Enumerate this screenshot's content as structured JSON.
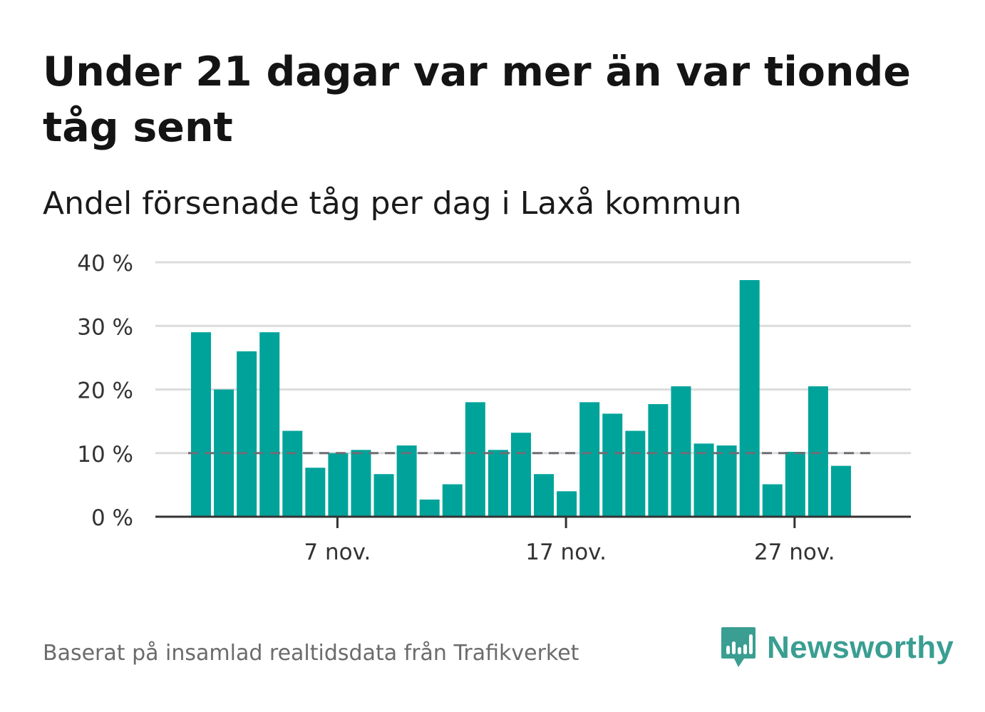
{
  "title": "Under 21 dagar var mer än var tionde tåg sent",
  "subtitle": "Andel försenade tåg per dag i Laxå kommun",
  "source": "Baserat på insamlad realtidsdata från Trafikverket",
  "brand": {
    "name": "Newsworthy",
    "icon": "newsworthy-logo-icon",
    "color": "#3a9e92"
  },
  "chart_data": {
    "type": "bar",
    "title": "Andel försenade tåg per dag i Laxå kommun",
    "xlabel": "",
    "ylabel": "",
    "ylim": [
      0,
      40
    ],
    "grid": true,
    "bar_color": "#00a39a",
    "reference_line": {
      "value": 10,
      "style": "dashed",
      "color": "#6e6e75"
    },
    "y_ticks": [
      {
        "value": 0,
        "label": "0 %"
      },
      {
        "value": 10,
        "label": "10 %"
      },
      {
        "value": 20,
        "label": "20 %"
      },
      {
        "value": 30,
        "label": "30 %"
      },
      {
        "value": 40,
        "label": "40 %"
      }
    ],
    "x_ticks": [
      {
        "day": 7,
        "label": "7 nov."
      },
      {
        "day": 17,
        "label": "17 nov."
      },
      {
        "day": 27,
        "label": "27 nov."
      }
    ],
    "categories": [
      "1 nov.",
      "2 nov.",
      "3 nov.",
      "4 nov.",
      "5 nov.",
      "6 nov.",
      "7 nov.",
      "8 nov.",
      "9 nov.",
      "10 nov.",
      "11 nov.",
      "12 nov.",
      "13 nov.",
      "14 nov.",
      "15 nov.",
      "16 nov.",
      "17 nov.",
      "18 nov.",
      "19 nov.",
      "20 nov.",
      "21 nov.",
      "22 nov.",
      "23 nov.",
      "24 nov.",
      "25 nov.",
      "26 nov.",
      "27 nov.",
      "28 nov.",
      "29 nov.",
      "30 nov."
    ],
    "days": [
      1,
      2,
      3,
      4,
      5,
      6,
      7,
      8,
      9,
      10,
      11,
      12,
      13,
      14,
      15,
      16,
      17,
      18,
      19,
      20,
      21,
      22,
      23,
      24,
      25,
      26,
      27,
      28,
      29,
      30
    ],
    "values": [
      29,
      20,
      26,
      29,
      13.5,
      7.7,
      10,
      10.5,
      6.7,
      11.2,
      2.7,
      5.1,
      18,
      10.5,
      13.2,
      6.7,
      4,
      18,
      16.2,
      13.5,
      17.7,
      20.5,
      11.5,
      11.2,
      37.2,
      5.1,
      10.2,
      20.5,
      8,
      0
    ]
  }
}
